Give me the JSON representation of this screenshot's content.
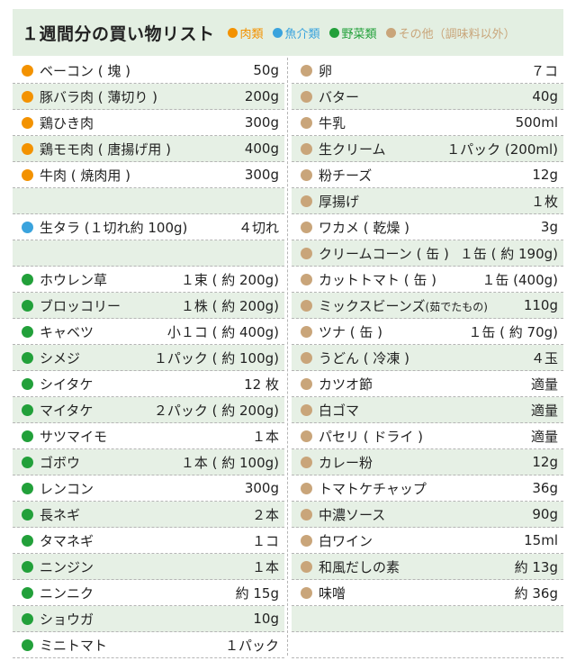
{
  "title": "１週間分の買い物リスト",
  "legend": [
    {
      "label": "肉類",
      "color": "#f39200"
    },
    {
      "label": "魚介類",
      "color": "#3aa3dd"
    },
    {
      "label": "野菜類",
      "color": "#22a03a"
    },
    {
      "label": "その他（調味料以外）",
      "color": "#c9a57a"
    }
  ],
  "colors": {
    "meat": "#f39200",
    "fish": "#3aa3dd",
    "veg": "#22a03a",
    "other": "#c9a57a",
    "row_shade": "#e6f0e5"
  },
  "left_items": [
    {
      "name": "ベーコン ( 塊 )",
      "qty": "50g",
      "cat": "meat"
    },
    {
      "name": "豚バラ肉 ( 薄切り )",
      "qty": "200g",
      "cat": "meat"
    },
    {
      "name": "鶏ひき肉",
      "qty": "300g",
      "cat": "meat"
    },
    {
      "name": "鶏モモ肉 ( 唐揚げ用 )",
      "qty": "400g",
      "cat": "meat"
    },
    {
      "name": "牛肉 ( 焼肉用 )",
      "qty": "300g",
      "cat": "meat"
    },
    {
      "name": "",
      "qty": "",
      "cat": ""
    },
    {
      "name": "生タラ (１切れ約 100g)",
      "qty": "４切れ",
      "cat": "fish"
    },
    {
      "name": "",
      "qty": "",
      "cat": ""
    },
    {
      "name": "ホウレン草",
      "qty": "１束 ( 約 200g)",
      "cat": "veg"
    },
    {
      "name": "ブロッコリー",
      "qty": "１株 ( 約 200g)",
      "cat": "veg"
    },
    {
      "name": "キャベツ",
      "qty": "小１コ ( 約 400g)",
      "cat": "veg"
    },
    {
      "name": "シメジ",
      "qty": "１パック ( 約 100g)",
      "cat": "veg"
    },
    {
      "name": "シイタケ",
      "qty": "12 枚",
      "cat": "veg"
    },
    {
      "name": "マイタケ",
      "qty": "２パック ( 約 200g)",
      "cat": "veg"
    },
    {
      "name": "サツマイモ",
      "qty": "１本",
      "cat": "veg"
    },
    {
      "name": "ゴボウ",
      "qty": "１本 ( 約 100g)",
      "cat": "veg"
    },
    {
      "name": "レンコン",
      "qty": "300g",
      "cat": "veg"
    },
    {
      "name": "長ネギ",
      "qty": "２本",
      "cat": "veg"
    },
    {
      "name": "タマネギ",
      "qty": "１コ",
      "cat": "veg"
    },
    {
      "name": "ニンジン",
      "qty": "１本",
      "cat": "veg"
    },
    {
      "name": "ニンニク",
      "qty": "約 15g",
      "cat": "veg"
    },
    {
      "name": "ショウガ",
      "qty": "10g",
      "cat": "veg"
    },
    {
      "name": "ミニトマト",
      "qty": "１パック",
      "cat": "veg"
    }
  ],
  "right_items": [
    {
      "name": "卵",
      "qty": "７コ",
      "cat": "other"
    },
    {
      "name": "バター",
      "qty": "40g",
      "cat": "other"
    },
    {
      "name": "牛乳",
      "qty": "500ml",
      "cat": "other"
    },
    {
      "name": "生クリーム",
      "qty": "１パック (200ml)",
      "cat": "other"
    },
    {
      "name": "粉チーズ",
      "qty": "12g",
      "cat": "other"
    },
    {
      "name": "厚揚げ",
      "qty": "１枚",
      "cat": "other"
    },
    {
      "name": "ワカメ ( 乾燥 )",
      "qty": "3g",
      "cat": "other"
    },
    {
      "name": "クリームコーン ( 缶 )",
      "qty": "１缶 ( 約 190g)",
      "cat": "other"
    },
    {
      "name": "カットトマト ( 缶 )",
      "qty": "１缶 (400g)",
      "cat": "other"
    },
    {
      "name": "ミックスビーンズ",
      "name_note": "(茹でたもの)",
      "qty": "110g",
      "cat": "other"
    },
    {
      "name": "ツナ ( 缶 )",
      "qty": "１缶 ( 約 70g)",
      "cat": "other"
    },
    {
      "name": "うどん ( 冷凍 )",
      "qty": "４玉",
      "cat": "other"
    },
    {
      "name": "カツオ節",
      "qty": "適量",
      "cat": "other"
    },
    {
      "name": "白ゴマ",
      "qty": "適量",
      "cat": "other"
    },
    {
      "name": "パセリ ( ドライ )",
      "qty": "適量",
      "cat": "other"
    },
    {
      "name": "カレー粉",
      "qty": "12g",
      "cat": "other"
    },
    {
      "name": "トマトケチャップ",
      "qty": "36g",
      "cat": "other"
    },
    {
      "name": "中濃ソース",
      "qty": "90g",
      "cat": "other"
    },
    {
      "name": "白ワイン",
      "qty": "15ml",
      "cat": "other"
    },
    {
      "name": "和風だしの素",
      "qty": "約 13g",
      "cat": "other"
    },
    {
      "name": "味噌",
      "qty": "約 36g",
      "cat": "other"
    },
    {
      "name": "",
      "qty": "",
      "cat": ""
    },
    {
      "name": "",
      "qty": "",
      "cat": ""
    }
  ]
}
